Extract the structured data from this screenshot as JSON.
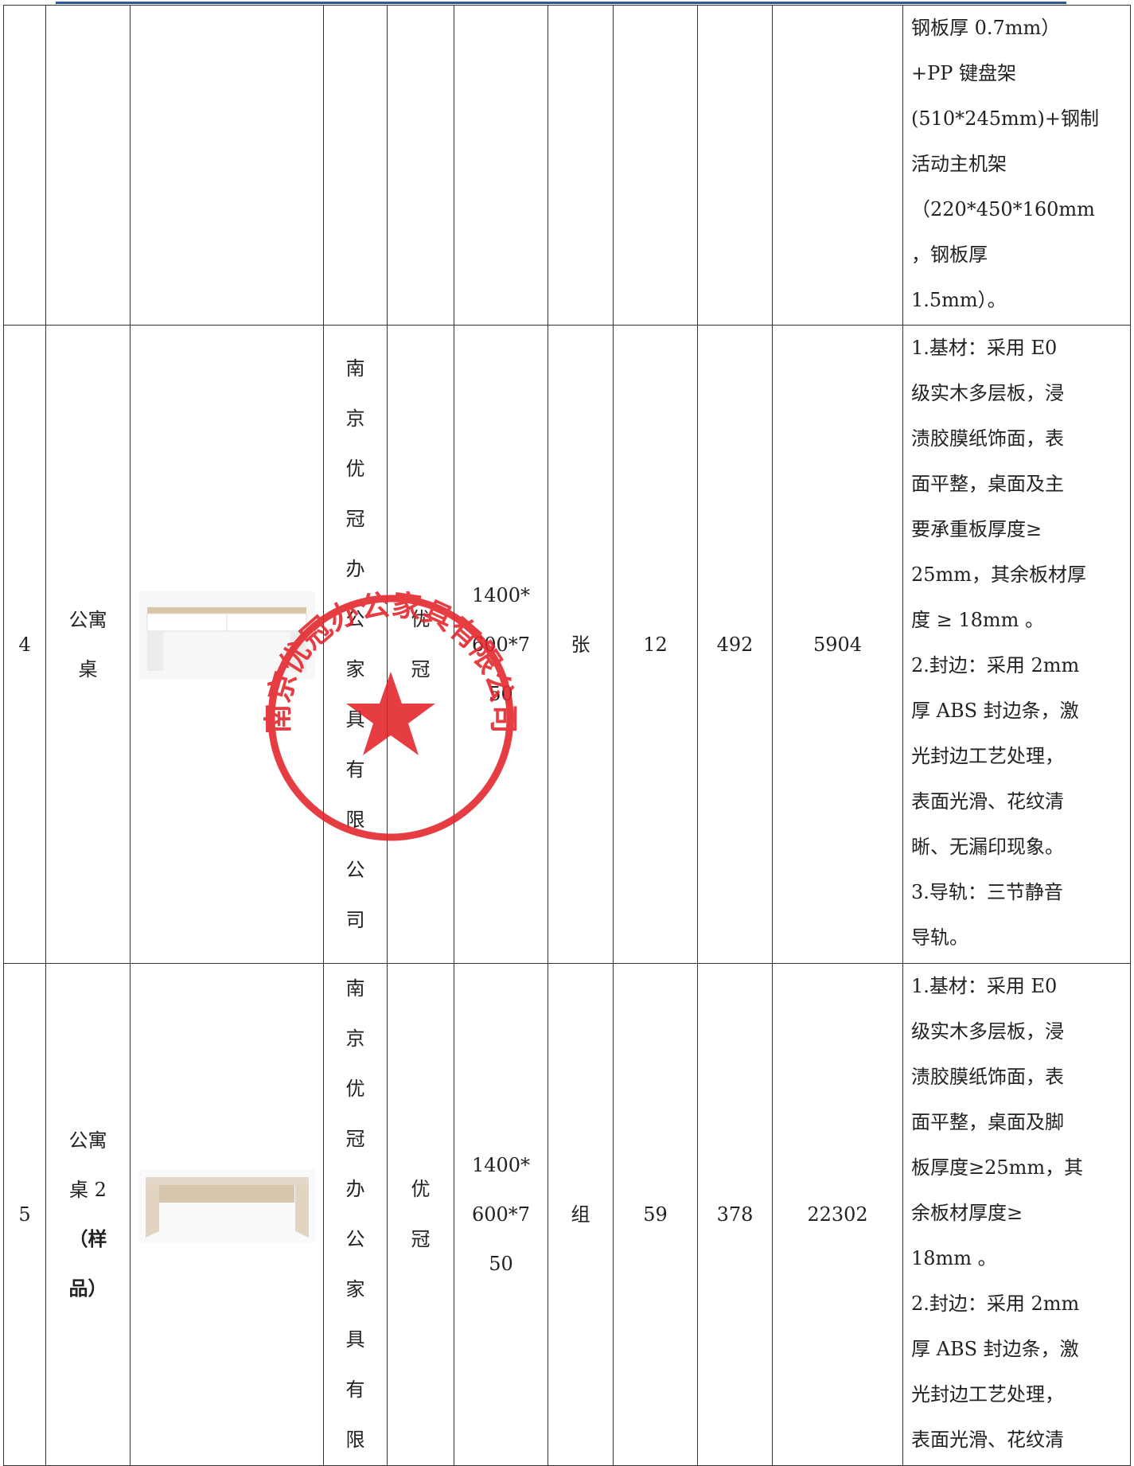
{
  "table": {
    "rows": [
      {
        "description": [
          "钢板厚 0.7mm）",
          "+PP 键盘架",
          "(510*245mm)+钢制",
          "活动主机架",
          "（220*450*160mm",
          "，钢板厚",
          "1.5mm）。"
        ]
      },
      {
        "index": 4,
        "name": [
          "公寓",
          "桌"
        ],
        "company": "南京优冠办公家具有限公司",
        "brand": "优冠",
        "size": [
          "1400*",
          "600*7",
          "50"
        ],
        "unit": "张",
        "quantity": 12,
        "unit_price": 492,
        "total": 5904,
        "description": [
          "1.基材：采用 E0",
          "级实木多层板，浸",
          "渍胶膜纸饰面，表",
          "面平整，桌面及主",
          "要承重板厚度≥",
          "25mm，其余板材厚",
          "度 ≥ 18mm 。",
          "2.封边：采用 2mm",
          "厚 ABS 封边条，激",
          "光封边工艺处理，",
          "表面光滑、花纹清",
          "晰、无漏印现象。",
          "3.导轨：三节静音",
          "导轨。"
        ]
      },
      {
        "index": 5,
        "name": [
          "公寓",
          "桌 2"
        ],
        "name_note": [
          "（样",
          "品）"
        ],
        "company": "南京优冠办公家具有限",
        "brand": "优冠",
        "size": [
          "1400*",
          "600*7",
          "50"
        ],
        "unit": "组",
        "quantity": 59,
        "unit_price": 378,
        "total": 22302,
        "description": [
          "1.基材：采用 E0",
          "级实木多层板，浸",
          "渍胶膜纸饰面，表",
          "面平整，桌面及脚",
          "板厚度≥25mm，其",
          "余板材厚度≥",
          "18mm 。",
          "2.封边：采用 2mm",
          "厚 ABS 封边条，激",
          "光封边工艺处理，",
          "表面光滑、花纹清"
        ]
      }
    ]
  },
  "stamp": {
    "text": "南京优冠办公家具有限公司"
  }
}
